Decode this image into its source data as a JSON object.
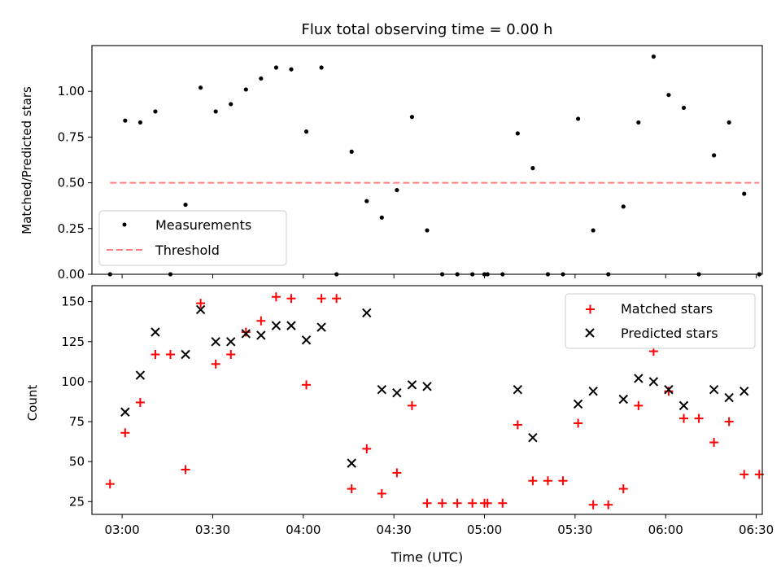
{
  "chart_data": [
    {
      "type": "scatter",
      "title": "Flux total observing time = 0.00 h",
      "xlabel": "",
      "ylabel": "Matched/Predicted stars",
      "ylim": [
        0,
        1.25
      ],
      "yticks": [
        "0.00",
        "0.25",
        "0.50",
        "0.75",
        "1.00"
      ],
      "ytick_values": [
        0,
        0.25,
        0.5,
        0.75,
        1.0
      ],
      "xlim_minutes": [
        170,
        392
      ],
      "grid": false,
      "legend_position": "lower-left",
      "series": [
        {
          "name": "Measurements",
          "marker": "dot",
          "color": "#000000",
          "x": [
            "02:56",
            "03:01",
            "03:06",
            "03:11",
            "03:16",
            "03:21",
            "03:26",
            "03:31",
            "03:36",
            "03:41",
            "03:46",
            "03:51",
            "03:56",
            "04:01",
            "04:06",
            "04:11",
            "04:16",
            "04:21",
            "04:26",
            "04:31",
            "04:36",
            "04:41",
            "04:46",
            "04:51",
            "04:56",
            "05:00",
            "05:01",
            "05:06",
            "05:11",
            "05:16",
            "05:21",
            "05:26",
            "05:31",
            "05:36",
            "05:41",
            "05:46",
            "05:51",
            "05:56",
            "06:01",
            "06:06",
            "06:11",
            "06:16",
            "06:21",
            "06:26",
            "06:31"
          ],
          "values": [
            0.0,
            0.84,
            0.83,
            0.89,
            0.0,
            0.38,
            1.02,
            0.89,
            0.93,
            1.01,
            1.07,
            1.13,
            1.12,
            0.78,
            1.13,
            0.0,
            0.67,
            0.4,
            0.31,
            0.46,
            0.86,
            0.24,
            0.0,
            0.0,
            0.0,
            0.0,
            0.0,
            0.0,
            0.77,
            0.58,
            0.0,
            0.0,
            0.85,
            0.24,
            0.0,
            0.37,
            0.83,
            1.19,
            0.98,
            0.91,
            0.0,
            0.65,
            0.83,
            0.44,
            0.0
          ]
        },
        {
          "name": "Threshold",
          "style": "dashed",
          "color": "#ff7f7f",
          "x": [
            "02:56",
            "06:31"
          ],
          "values": [
            0.5,
            0.5
          ]
        }
      ]
    },
    {
      "type": "scatter",
      "title": "",
      "xlabel": "Time (UTC)",
      "ylabel": "Count",
      "ylim": [
        17,
        160
      ],
      "yticks": [
        "25",
        "50",
        "75",
        "100",
        "125",
        "150"
      ],
      "ytick_values": [
        25,
        50,
        75,
        100,
        125,
        150
      ],
      "xticks": [
        "03:00",
        "03:30",
        "04:00",
        "04:30",
        "05:00",
        "05:30",
        "06:00",
        "06:30"
      ],
      "xtick_minutes": [
        180,
        210,
        240,
        270,
        300,
        330,
        360,
        390
      ],
      "xlim_minutes": [
        170,
        392
      ],
      "grid": false,
      "legend_position": "upper-right",
      "series": [
        {
          "name": "Matched stars",
          "marker": "plus",
          "color": "#ff0000",
          "x": [
            "02:56",
            "03:01",
            "03:06",
            "03:11",
            "03:16",
            "03:21",
            "03:26",
            "03:31",
            "03:36",
            "03:41",
            "03:46",
            "03:51",
            "03:56",
            "04:01",
            "04:06",
            "04:11",
            "04:16",
            "04:21",
            "04:26",
            "04:31",
            "04:36",
            "04:41",
            "04:46",
            "04:51",
            "04:56",
            "05:00",
            "05:01",
            "05:06",
            "05:11",
            "05:16",
            "05:21",
            "05:26",
            "05:31",
            "05:36",
            "05:41",
            "05:46",
            "05:51",
            "05:56",
            "06:01",
            "06:06",
            "06:11",
            "06:16",
            "06:21",
            "06:26",
            "06:31"
          ],
          "values": [
            36,
            68,
            87,
            117,
            117,
            45,
            149,
            111,
            117,
            131,
            138,
            153,
            152,
            98,
            152,
            152,
            33,
            58,
            30,
            43,
            85,
            24,
            24,
            24,
            24,
            24,
            24,
            24,
            73,
            38,
            38,
            38,
            74,
            23,
            23,
            33,
            85,
            119,
            94,
            77,
            77,
            62,
            75,
            42,
            42
          ]
        },
        {
          "name": "Predicted stars",
          "marker": "x",
          "color": "#000000",
          "x": [
            "03:01",
            "03:06",
            "03:11",
            "03:21",
            "03:26",
            "03:31",
            "03:36",
            "03:41",
            "03:46",
            "03:51",
            "03:56",
            "04:01",
            "04:06",
            "04:16",
            "04:21",
            "04:26",
            "04:31",
            "04:36",
            "04:41",
            "05:11",
            "05:16",
            "05:31",
            "05:36",
            "05:46",
            "05:51",
            "05:56",
            "06:01",
            "06:06",
            "06:16",
            "06:21",
            "06:26"
          ],
          "values": [
            81,
            104,
            131,
            117,
            145,
            125,
            125,
            130,
            129,
            135,
            135,
            126,
            134,
            49,
            143,
            95,
            93,
            98,
            97,
            95,
            65,
            86,
            94,
            89,
            102,
            100,
            95,
            85,
            95,
            90,
            94
          ]
        }
      ]
    }
  ]
}
